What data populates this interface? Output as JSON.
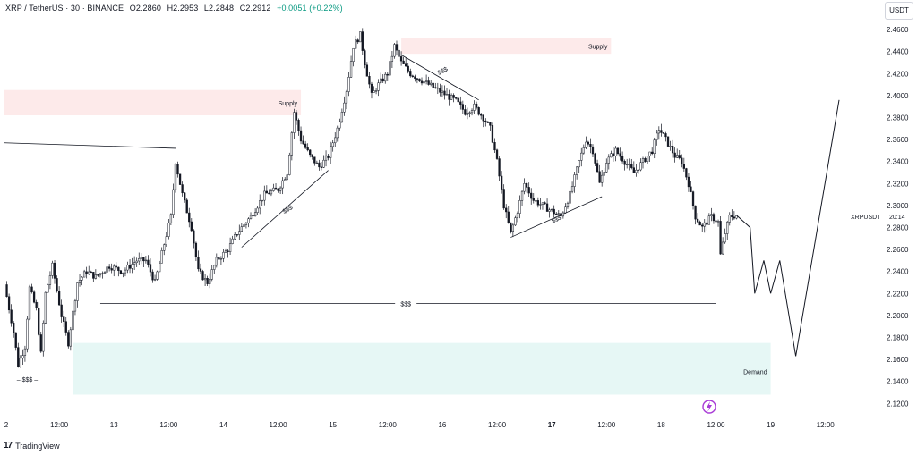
{
  "header": {
    "symbol": "XRP / TetherUS · 30 · BINANCE",
    "open": "O2.2860",
    "high": "H2.2953",
    "low": "L2.2848",
    "close": "C2.2912",
    "change": "+0.0051 (+0.22%)"
  },
  "currency_button": "USDT",
  "brand": "TradingView",
  "price_tag": {
    "symbol": "XRPUSDT",
    "countdown": "20:14"
  },
  "colors": {
    "supply": "#fdeaea",
    "demand": "#e6f7f5",
    "candle": "#131722",
    "lightning": "#a83ad6"
  },
  "chart_data": {
    "type": "candlestick",
    "y_ticks": [
      "2.4600",
      "2.4400",
      "2.4200",
      "2.4000",
      "2.3800",
      "2.3600",
      "2.3400",
      "2.3200",
      "2.3000",
      "2.2800",
      "2.2600",
      "2.2400",
      "2.2200",
      "2.2000",
      "2.1800",
      "2.1600",
      "2.1400",
      "2.1200"
    ],
    "ylim": [
      2.117,
      2.469
    ],
    "x_ticks": [
      "2",
      "12:00",
      "13",
      "12:00",
      "14",
      "12:00",
      "15",
      "12:00",
      "16",
      "12:00",
      "17",
      "12:00",
      "18",
      "12:00",
      "19",
      "12:00"
    ],
    "x_tick_hours": [
      0,
      12,
      24,
      36,
      48,
      60,
      72,
      84,
      96,
      108,
      120,
      132,
      144,
      156,
      168,
      180
    ],
    "x_tick_bold": [
      false,
      false,
      false,
      false,
      false,
      false,
      false,
      false,
      false,
      false,
      true,
      false,
      false,
      false,
      false,
      false
    ],
    "xlim_hours": [
      0,
      183
    ],
    "price_path": [
      {
        "h": 0,
        "p": 2.228
      },
      {
        "h": 2,
        "p": 2.185
      },
      {
        "h": 3,
        "p": 2.155
      },
      {
        "h": 4.5,
        "p": 2.172
      },
      {
        "h": 5.5,
        "p": 2.225
      },
      {
        "h": 7,
        "p": 2.205
      },
      {
        "h": 8,
        "p": 2.165
      },
      {
        "h": 9,
        "p": 2.22
      },
      {
        "h": 10.5,
        "p": 2.245
      },
      {
        "h": 12.5,
        "p": 2.2
      },
      {
        "h": 14,
        "p": 2.175
      },
      {
        "h": 16,
        "p": 2.23
      },
      {
        "h": 18,
        "p": 2.24
      },
      {
        "h": 20,
        "p": 2.235
      },
      {
        "h": 23,
        "p": 2.245
      },
      {
        "h": 26,
        "p": 2.24
      },
      {
        "h": 29,
        "p": 2.25
      },
      {
        "h": 31,
        "p": 2.25
      },
      {
        "h": 33,
        "p": 2.23
      },
      {
        "h": 35,
        "p": 2.265
      },
      {
        "h": 36.5,
        "p": 2.29
      },
      {
        "h": 37.5,
        "p": 2.34
      },
      {
        "h": 39,
        "p": 2.31
      },
      {
        "h": 41,
        "p": 2.28
      },
      {
        "h": 42.5,
        "p": 2.24
      },
      {
        "h": 44.5,
        "p": 2.23
      },
      {
        "h": 46.5,
        "p": 2.25
      },
      {
        "h": 49,
        "p": 2.26
      },
      {
        "h": 51,
        "p": 2.275
      },
      {
        "h": 54,
        "p": 2.29
      },
      {
        "h": 57,
        "p": 2.31
      },
      {
        "h": 60,
        "p": 2.315
      },
      {
        "h": 62,
        "p": 2.33
      },
      {
        "h": 63.5,
        "p": 2.385
      },
      {
        "h": 65,
        "p": 2.36
      },
      {
        "h": 67,
        "p": 2.345
      },
      {
        "h": 69,
        "p": 2.335
      },
      {
        "h": 71,
        "p": 2.345
      },
      {
        "h": 73,
        "p": 2.37
      },
      {
        "h": 75,
        "p": 2.405
      },
      {
        "h": 76.5,
        "p": 2.445
      },
      {
        "h": 78,
        "p": 2.455
      },
      {
        "h": 79,
        "p": 2.43
      },
      {
        "h": 80.5,
        "p": 2.4
      },
      {
        "h": 82,
        "p": 2.41
      },
      {
        "h": 84,
        "p": 2.42
      },
      {
        "h": 85.5,
        "p": 2.445
      },
      {
        "h": 87,
        "p": 2.43
      },
      {
        "h": 89,
        "p": 2.42
      },
      {
        "h": 91,
        "p": 2.415
      },
      {
        "h": 93,
        "p": 2.41
      },
      {
        "h": 95,
        "p": 2.405
      },
      {
        "h": 97,
        "p": 2.4
      },
      {
        "h": 99,
        "p": 2.395
      },
      {
        "h": 101,
        "p": 2.385
      },
      {
        "h": 103,
        "p": 2.39
      },
      {
        "h": 105,
        "p": 2.38
      },
      {
        "h": 106.5,
        "p": 2.37
      },
      {
        "h": 108,
        "p": 2.34
      },
      {
        "h": 109.5,
        "p": 2.3
      },
      {
        "h": 111,
        "p": 2.275
      },
      {
        "h": 112.5,
        "p": 2.295
      },
      {
        "h": 114,
        "p": 2.32
      },
      {
        "h": 116,
        "p": 2.305
      },
      {
        "h": 118,
        "p": 2.3
      },
      {
        "h": 120,
        "p": 2.295
      },
      {
        "h": 122,
        "p": 2.29
      },
      {
        "h": 124,
        "p": 2.31
      },
      {
        "h": 126,
        "p": 2.34
      },
      {
        "h": 127.5,
        "p": 2.36
      },
      {
        "h": 129,
        "p": 2.35
      },
      {
        "h": 130.5,
        "p": 2.32
      },
      {
        "h": 132,
        "p": 2.34
      },
      {
        "h": 134,
        "p": 2.35
      },
      {
        "h": 136,
        "p": 2.34
      },
      {
        "h": 138,
        "p": 2.33
      },
      {
        "h": 140,
        "p": 2.34
      },
      {
        "h": 142,
        "p": 2.35
      },
      {
        "h": 143.5,
        "p": 2.37
      },
      {
        "h": 145,
        "p": 2.36
      },
      {
        "h": 147,
        "p": 2.345
      },
      {
        "h": 148.5,
        "p": 2.34
      },
      {
        "h": 150,
        "p": 2.32
      },
      {
        "h": 151.5,
        "p": 2.29
      },
      {
        "h": 153,
        "p": 2.28
      },
      {
        "h": 155,
        "p": 2.29
      },
      {
        "h": 156.5,
        "p": 2.285
      },
      {
        "h": 157,
        "p": 2.255
      },
      {
        "h": 158,
        "p": 2.275
      },
      {
        "h": 159,
        "p": 2.29
      },
      {
        "h": 160.5,
        "p": 2.291
      }
    ],
    "projection": [
      {
        "h": 163.5,
        "p": 2.28
      },
      {
        "h": 164.5,
        "p": 2.22
      },
      {
        "h": 166.5,
        "p": 2.25
      },
      {
        "h": 168,
        "p": 2.22
      },
      {
        "h": 170,
        "p": 2.25
      },
      {
        "h": 173.5,
        "p": 2.163
      },
      {
        "h": 183,
        "p": 2.396
      }
    ],
    "zones": [
      {
        "type": "supply",
        "label": "Supply",
        "h0": 0,
        "h1": 65,
        "p_top": 2.405,
        "p_bot": 2.382
      },
      {
        "type": "supply",
        "label": "Supply",
        "h0": 87,
        "h1": 133,
        "p_top": 2.452,
        "p_bot": 2.438
      },
      {
        "type": "demand",
        "label": "Demand",
        "h0": 15,
        "h1": 168,
        "p_top": 2.175,
        "p_bot": 2.128
      }
    ],
    "lines": [
      {
        "h0": 0,
        "p0": 2.357,
        "h1": 37.5,
        "p1": 2.352
      },
      {
        "h0": 21,
        "p0": 2.211,
        "h1": 156,
        "p1": 2.211
      },
      {
        "h0": 52,
        "p0": 2.262,
        "h1": 71,
        "p1": 2.332
      },
      {
        "h0": 87,
        "p0": 2.437,
        "h1": 104,
        "p1": 2.396
      },
      {
        "h0": 111,
        "p0": 2.271,
        "h1": 131,
        "p1": 2.308
      }
    ],
    "annotations": [
      {
        "text": "$$$",
        "h": 62,
        "p": 2.297,
        "rot": -30
      },
      {
        "text": "$$$",
        "h": 96,
        "p": 2.423,
        "rot": -28
      },
      {
        "text": "$$$",
        "h": 121,
        "p": 2.288,
        "rot": -25
      },
      {
        "text": "$$$",
        "h": 88,
        "p": 2.211,
        "rot": 0
      },
      {
        "text": "– $$$ –",
        "h": 5,
        "p": 2.142,
        "rot": 0
      }
    ],
    "current_price": 2.2912
  }
}
